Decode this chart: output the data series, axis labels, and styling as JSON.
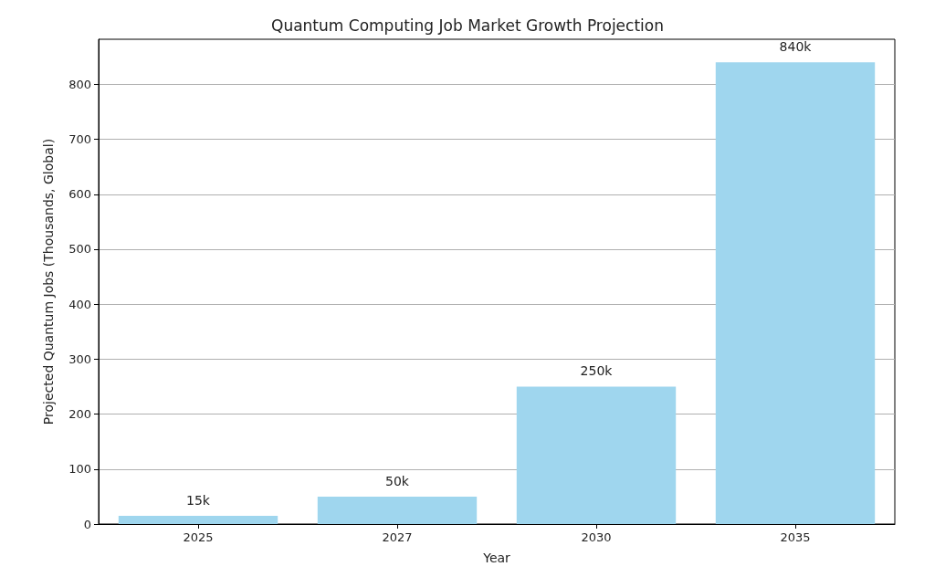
{
  "chart_data": {
    "type": "bar",
    "title": "Quantum Computing Job Market Growth Projection",
    "xlabel": "Year",
    "ylabel": "Projected Quantum Jobs (Thousands, Global)",
    "categories": [
      "2025",
      "2027",
      "2030",
      "2035"
    ],
    "values": [
      15,
      50,
      250,
      840
    ],
    "value_labels": [
      "15k",
      "50k",
      "250k",
      "840k"
    ],
    "color": "#9fd6ee",
    "ylim": [
      0,
      882
    ],
    "yticks": [
      0,
      100,
      200,
      300,
      400,
      500,
      600,
      700,
      800
    ],
    "grid": "y"
  }
}
